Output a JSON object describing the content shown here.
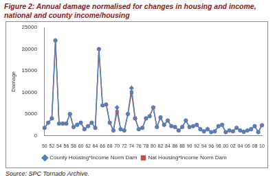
{
  "chart_data": {
    "type": "line",
    "title": "Figure 2:  Annual damage normalised for changes in housing and income, national and county income/housing",
    "source": "Source: SPC Tornado Archive.",
    "y_label": "Damage",
    "categories": [
      "50",
      null,
      "52",
      null,
      "54",
      null,
      "56",
      null,
      "58",
      null,
      "60",
      null,
      "62",
      null,
      "64",
      null,
      "66",
      null,
      "68",
      null,
      "70",
      null,
      "72",
      null,
      "74",
      null,
      "76",
      null,
      "78",
      null,
      "80",
      null,
      "82",
      null,
      "84",
      null,
      "86",
      null,
      "88",
      null,
      "90",
      null,
      "92",
      null,
      "94",
      null,
      "96",
      null,
      "98",
      null,
      "00",
      null,
      "02",
      null,
      "04",
      null,
      "06",
      null,
      "08",
      null,
      "10"
    ],
    "series": [
      {
        "name": "County Housing*Income Norm Dam",
        "color": "#4f81bd",
        "marker": "diamond",
        "values": [
          1800,
          3000,
          4000,
          22000,
          2800,
          2800,
          2800,
          5000,
          2000,
          2500,
          3000,
          1500,
          2200,
          3000,
          1800,
          20000,
          7000,
          7200,
          3000,
          1200,
          6500,
          1500,
          1200,
          5000,
          11000,
          4000,
          1500,
          1800,
          4000,
          4500,
          6500,
          2000,
          4200,
          2500,
          3500,
          2200,
          2000,
          1200,
          2000,
          3500,
          2000,
          2200,
          2500,
          1500,
          1000,
          1500,
          800,
          1000,
          2200,
          2500,
          800,
          1200,
          1000,
          1800,
          1200,
          900,
          1200,
          1500,
          2200,
          800,
          2400
        ]
      },
      {
        "name": "Nat Housing*Income Norm Dam",
        "color": "#c0504d",
        "marker": "square",
        "values": [
          1800,
          3000,
          4000,
          22000,
          2800,
          2800,
          2800,
          5000,
          2000,
          2500,
          3000,
          1500,
          2200,
          3000,
          1800,
          20000,
          7000,
          7200,
          3000,
          1200,
          5500,
          1500,
          1200,
          5000,
          10000,
          4000,
          1500,
          1800,
          4000,
          4500,
          6500,
          2000,
          4200,
          2500,
          3500,
          2200,
          2000,
          1200,
          2000,
          3500,
          2000,
          2200,
          2500,
          1500,
          1000,
          1500,
          800,
          1000,
          2200,
          2500,
          800,
          1200,
          1000,
          1800,
          1200,
          900,
          1200,
          1500,
          2200,
          800,
          2400
        ]
      }
    ],
    "ylim": [
      0,
      25000
    ],
    "yticks": [
      0,
      5000,
      10000,
      15000,
      20000,
      25000
    ],
    "grid": false,
    "legend": "bottom"
  }
}
